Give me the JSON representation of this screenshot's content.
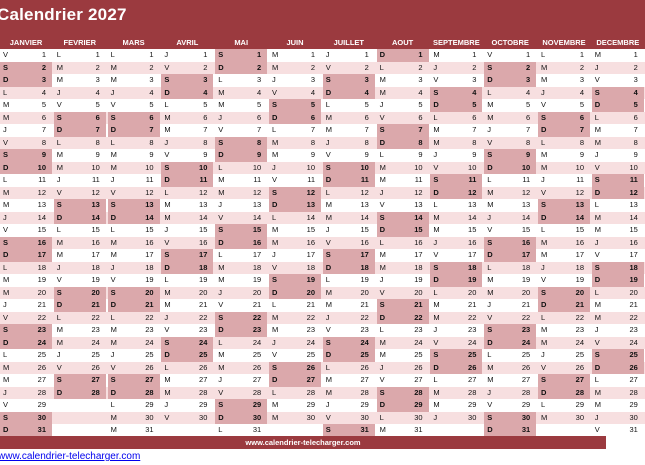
{
  "title": "Calendrier 2027",
  "months": [
    {
      "name": "JANVIER",
      "start": 5,
      "days": 31
    },
    {
      "name": "FEVRIER",
      "start": 1,
      "days": 28
    },
    {
      "name": "MARS",
      "start": 1,
      "days": 31
    },
    {
      "name": "AVRIL",
      "start": 4,
      "days": 30
    },
    {
      "name": "MAI",
      "start": 6,
      "days": 31
    },
    {
      "name": "JUIN",
      "start": 2,
      "days": 30
    },
    {
      "name": "JUILLET",
      "start": 4,
      "days": 31
    },
    {
      "name": "AOUT",
      "start": 0,
      "days": 31
    },
    {
      "name": "SEPTEMBRE",
      "start": 3,
      "days": 30
    },
    {
      "name": "OCTOBRE",
      "start": 5,
      "days": 31
    },
    {
      "name": "NOVEMBRE",
      "start": 1,
      "days": 30
    },
    {
      "name": "DECEMBRE",
      "start": 3,
      "days": 31
    }
  ],
  "day_letters": [
    "D",
    "L",
    "M",
    "M",
    "J",
    "V",
    "S"
  ],
  "weekend_days": [
    0,
    6
  ],
  "footer_text": "www.calendrier-telecharger.com",
  "link_text": "www.calendrier-telecharger.com",
  "colors": {
    "header": "#9b3a3f",
    "weekend": "#dba8ab",
    "alt_row": "#f7dfe0",
    "link": "#0000ee"
  }
}
